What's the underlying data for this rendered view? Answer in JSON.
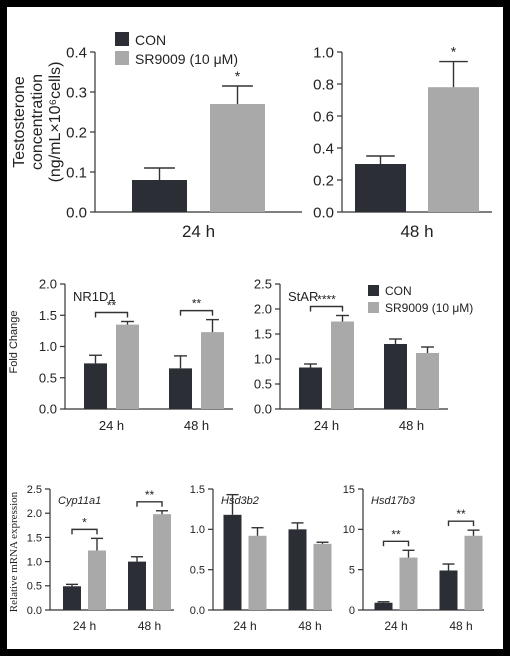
{
  "colors": {
    "con": "#2b2e35",
    "sr": "#a9a9a9"
  },
  "row1_ylabel": [
    "Testosterone",
    "concentration",
    "(ng/mL×10⁶cells)"
  ],
  "row2_ylabel": "Fold Change",
  "row3_ylabel": "Relative mRNA expression",
  "chart_data": [
    {
      "id": "t24",
      "type": "bar",
      "title": "",
      "categories": [
        "24 h"
      ],
      "series": [
        {
          "name": "CON",
          "values": [
            0.08
          ],
          "errors": [
            0.03
          ]
        },
        {
          "name": "SR9009 (10 μM)",
          "values": [
            0.27
          ],
          "errors": [
            0.045
          ]
        }
      ],
      "ylim": [
        0,
        0.4
      ],
      "yticks": [
        "0.0",
        "0.1",
        "0.2",
        "0.3",
        "0.4"
      ],
      "sig": [
        {
          "cat": 0,
          "label": "*",
          "type": "star"
        }
      ],
      "legend": {
        "entries": [
          "CON",
          "SR9009 (10 μM)"
        ],
        "placement": "top-left"
      }
    },
    {
      "id": "t48",
      "type": "bar",
      "title": "",
      "categories": [
        "48 h"
      ],
      "series": [
        {
          "name": "CON",
          "values": [
            0.3
          ],
          "errors": [
            0.05
          ]
        },
        {
          "name": "SR9009 (10 μM)",
          "values": [
            0.78
          ],
          "errors": [
            0.16
          ]
        }
      ],
      "ylim": [
        0,
        1.0
      ],
      "yticks": [
        "0.0",
        "0.2",
        "0.4",
        "0.6",
        "0.8",
        "1.0"
      ],
      "sig": [
        {
          "cat": 0,
          "label": "*",
          "type": "star"
        }
      ]
    },
    {
      "id": "nr1d1",
      "type": "bar",
      "title": "NR1D1",
      "categories": [
        "24 h",
        "48 h"
      ],
      "series": [
        {
          "name": "CON",
          "values": [
            0.73,
            0.65
          ],
          "errors": [
            0.13,
            0.2
          ]
        },
        {
          "name": "SR9009",
          "values": [
            1.35,
            1.23
          ],
          "errors": [
            0.05,
            0.2
          ]
        }
      ],
      "ylim": [
        0,
        2.0
      ],
      "yticks": [
        "0.0",
        "0.5",
        "1.0",
        "1.5",
        "2.0"
      ],
      "sig": [
        {
          "cat": 0,
          "label": "**",
          "type": "bracket"
        },
        {
          "cat": 1,
          "label": "**",
          "type": "bracket"
        }
      ]
    },
    {
      "id": "star",
      "type": "bar",
      "title": "StAR",
      "categories": [
        "24 h",
        "48 h"
      ],
      "series": [
        {
          "name": "CON",
          "values": [
            0.83,
            1.3
          ],
          "errors": [
            0.07,
            0.1
          ]
        },
        {
          "name": "SR9009 (10 μM)",
          "values": [
            1.75,
            1.12
          ],
          "errors": [
            0.12,
            0.12
          ]
        }
      ],
      "ylim": [
        0,
        2.5
      ],
      "yticks": [
        "0.0",
        "0.5",
        "1.0",
        "1.5",
        "2.0",
        "2.5"
      ],
      "sig": [
        {
          "cat": 0,
          "label": "****",
          "type": "bracket"
        }
      ],
      "legend": {
        "entries": [
          "CON",
          "SR9009 (10 μM)"
        ],
        "placement": "top-right"
      }
    },
    {
      "id": "cyp",
      "type": "bar",
      "title": "Cyp11a1",
      "categories": [
        "24 h",
        "48 h"
      ],
      "series": [
        {
          "name": "CON",
          "values": [
            0.49,
            1.0
          ],
          "errors": [
            0.04,
            0.1
          ]
        },
        {
          "name": "SR9009",
          "values": [
            1.23,
            1.98
          ],
          "errors": [
            0.25,
            0.07
          ]
        }
      ],
      "ylim": [
        0,
        2.5
      ],
      "yticks": [
        "0.0",
        "0.5",
        "1.0",
        "1.5",
        "2.0",
        "2.5"
      ],
      "sig": [
        {
          "cat": 0,
          "label": "*",
          "type": "bracket"
        },
        {
          "cat": 1,
          "label": "**",
          "type": "bracket"
        }
      ]
    },
    {
      "id": "hsd3",
      "type": "bar",
      "title": "Hsd3b2",
      "categories": [
        "24 h",
        "48 h"
      ],
      "series": [
        {
          "name": "CON",
          "values": [
            1.18,
            1.0
          ],
          "errors": [
            0.25,
            0.08
          ]
        },
        {
          "name": "SR9009",
          "values": [
            0.92,
            0.82
          ],
          "errors": [
            0.1,
            0.02
          ]
        }
      ],
      "ylim": [
        0,
        1.5
      ],
      "yticks": [
        "0.0",
        "0.5",
        "1.0",
        "1.5"
      ],
      "sig": []
    },
    {
      "id": "hsd17",
      "type": "bar",
      "title": "Hsd17b3",
      "categories": [
        "24 h",
        "48 h"
      ],
      "series": [
        {
          "name": "CON",
          "values": [
            0.9,
            4.9
          ],
          "errors": [
            0.12,
            0.8
          ]
        },
        {
          "name": "SR9009",
          "values": [
            6.5,
            9.2
          ],
          "errors": [
            0.9,
            0.7
          ]
        }
      ],
      "ylim": [
        0,
        15
      ],
      "yticks": [
        "0",
        "5",
        "10",
        "15"
      ],
      "sig": [
        {
          "cat": 0,
          "label": "**",
          "type": "bracket"
        },
        {
          "cat": 1,
          "label": "**",
          "type": "bracket"
        }
      ]
    }
  ]
}
